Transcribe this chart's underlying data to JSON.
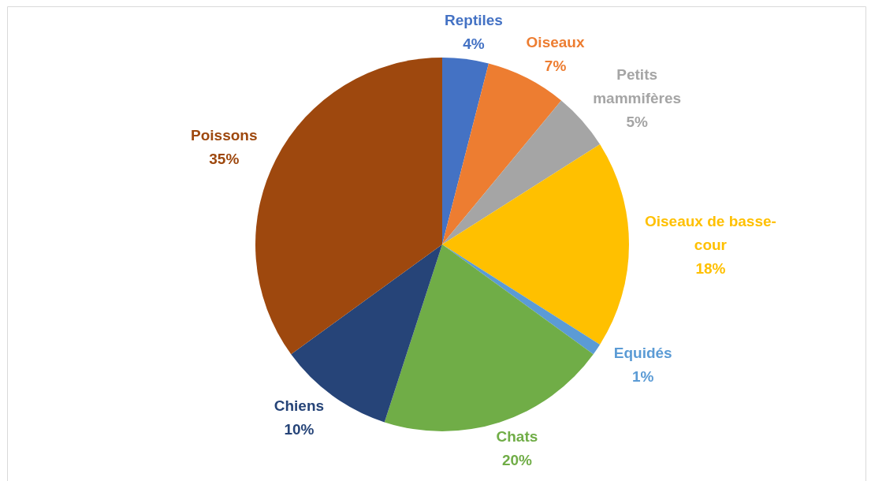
{
  "chart_data": {
    "type": "pie",
    "categories": [
      "Reptiles",
      "Oiseaux",
      "Petits mammifères",
      "Oiseaux de basse-cour",
      "Equidés",
      "Chats",
      "Chiens",
      "Poissons"
    ],
    "values": [
      4,
      7,
      5,
      18,
      1,
      20,
      10,
      35
    ],
    "value_labels": [
      "4%",
      "7%",
      "5%",
      "18%",
      "1%",
      "20%",
      "10%",
      "35%"
    ],
    "colors": [
      "#4472c4",
      "#ed7d31",
      "#a5a5a5",
      "#ffc000",
      "#5b9bd5",
      "#70ad47",
      "#264478",
      "#9e480e"
    ],
    "legend": false
  }
}
